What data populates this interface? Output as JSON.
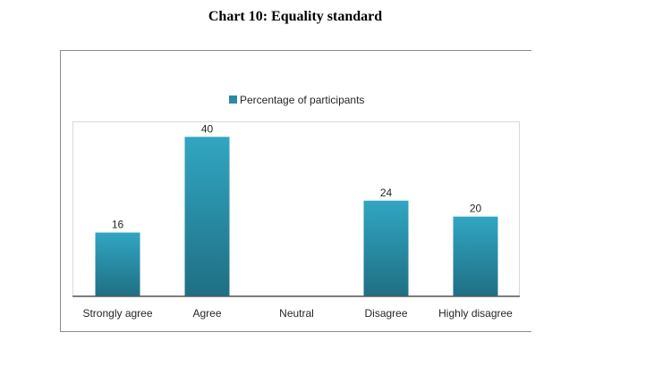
{
  "page": {
    "title": "Chart 10: Equality standard"
  },
  "colors": {
    "bar_top": "#31a6c2",
    "bar_bottom": "#1f6f84",
    "legend": "#2a8aa6",
    "axis": "#595959"
  },
  "chart_data": {
    "type": "bar",
    "title": "Chart 10: Equality standard",
    "categories": [
      "Strongly agree",
      "Agree",
      "Neutral",
      "Disagree",
      "Highly disagree"
    ],
    "series": [
      {
        "name": "Percentage of participants",
        "values": [
          16,
          40,
          0,
          24,
          20
        ]
      }
    ],
    "data_labels": [
      "16",
      "40",
      "",
      "24",
      "20"
    ],
    "ylim": [
      0,
      43
    ],
    "grid": false,
    "legend_position": "top-center"
  }
}
